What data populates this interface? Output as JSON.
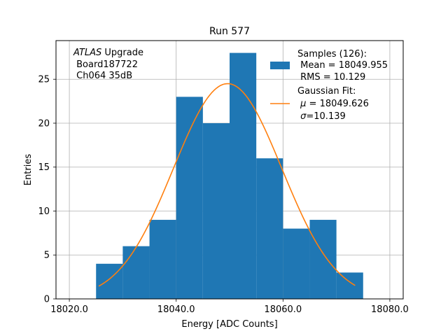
{
  "chart_data": {
    "type": "bar",
    "title": "Run 577",
    "xlabel": "Energy [ADC Counts]",
    "ylabel": "Entries",
    "xlim": [
      18017.5,
      18082.5
    ],
    "ylim": [
      0,
      29.4
    ],
    "grid": true,
    "x_ticks": [
      18020,
      18040,
      18060,
      18080
    ],
    "x_tick_labels": [
      "18020.0",
      "18040.0",
      "18060.0",
      "18080.0"
    ],
    "y_ticks": [
      0,
      5,
      10,
      15,
      20,
      25
    ],
    "y_tick_labels": [
      "0",
      "5",
      "10",
      "15",
      "20",
      "25"
    ],
    "histogram": {
      "name": "Samples (126)",
      "bin_edges": [
        18025,
        18030,
        18035,
        18040,
        18045,
        18050,
        18055,
        18060,
        18065,
        18070,
        18075
      ],
      "counts": [
        4,
        6,
        9,
        23,
        20,
        28,
        16,
        8,
        9,
        3
      ],
      "color": "#1f77b4"
    },
    "fit": {
      "name": "Gaussian Fit",
      "mu": 18049.626,
      "sigma": 10.139,
      "amplitude": 24.5,
      "x_range": [
        18025.5,
        18073.5
      ],
      "color": "#ff7f0e"
    },
    "annotation": {
      "italic": "ATLAS",
      "suffix": " Upgrade",
      "line2": " Board187722",
      "line3": " Ch064 35dB"
    },
    "legend": {
      "position": "top-right",
      "samples_label": "Samples (126):",
      "mean_text": " Mean = 18049.955",
      "rms_text": " RMS = 10.129",
      "fit_label": "Gaussian Fit:",
      "mu_value": " = 18049.626",
      "sigma_value": "=10.139"
    }
  }
}
